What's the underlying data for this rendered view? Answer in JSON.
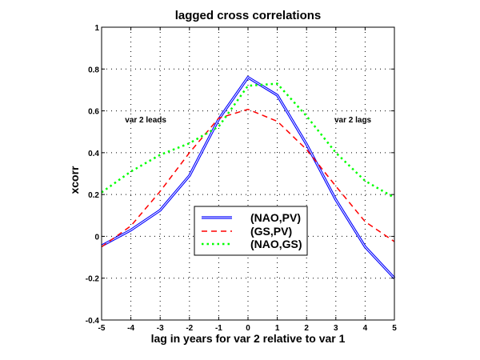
{
  "chart_data": {
    "type": "line",
    "title": "lagged cross correlations",
    "xlabel": "lag in years for var 2 relative to var 1",
    "ylabel": "xcorr",
    "xlim": [
      -5,
      5
    ],
    "ylim": [
      -0.4,
      1
    ],
    "grid": true,
    "x": [
      -5,
      -4,
      -3,
      -2,
      -1,
      0,
      1,
      2,
      3,
      4,
      5
    ],
    "xticks": [
      -5,
      -4,
      -3,
      -2,
      -1,
      0,
      1,
      2,
      3,
      4,
      5
    ],
    "xtick_labels": [
      "-5",
      "-4",
      "-3",
      "-2",
      "-1",
      "0",
      "1",
      "2",
      "3",
      "4",
      "5"
    ],
    "yticks": [
      1,
      0.8,
      0.6,
      0.4,
      0.2,
      0,
      -0.2,
      -0.4
    ],
    "ytick_labels": [
      "1",
      "0.8",
      "0.6",
      "0.4",
      "0.2",
      "0",
      "-0.2",
      "-0.4"
    ],
    "series": [
      {
        "name": "(NAO,PV)",
        "color": "#0000ff",
        "style": "double-solid",
        "values": [
          -0.045,
          0.03,
          0.125,
          0.29,
          0.56,
          0.76,
          0.675,
          0.44,
          0.175,
          -0.05,
          -0.2
        ]
      },
      {
        "name": "(GS,PV)",
        "color": "#ff0000",
        "style": "dashed",
        "values": [
          -0.05,
          0.05,
          0.215,
          0.4,
          0.565,
          0.607,
          0.55,
          0.415,
          0.24,
          0.07,
          -0.025
        ]
      },
      {
        "name": "(NAO,GS)",
        "color": "#00ff00",
        "style": "dotted",
        "values": [
          0.21,
          0.31,
          0.39,
          0.445,
          0.525,
          0.72,
          0.73,
          0.575,
          0.4,
          0.265,
          0.185
        ]
      }
    ],
    "annotations": [
      {
        "text": "var 2 leads",
        "x": -4.2,
        "y": 0.545
      },
      {
        "text": "var 2 lags",
        "x": 2.95,
        "y": 0.545
      }
    ],
    "legend": {
      "position": "lower-center",
      "entries": [
        "(NAO,PV)",
        "(GS,PV)",
        "(NAO,GS)"
      ]
    }
  }
}
